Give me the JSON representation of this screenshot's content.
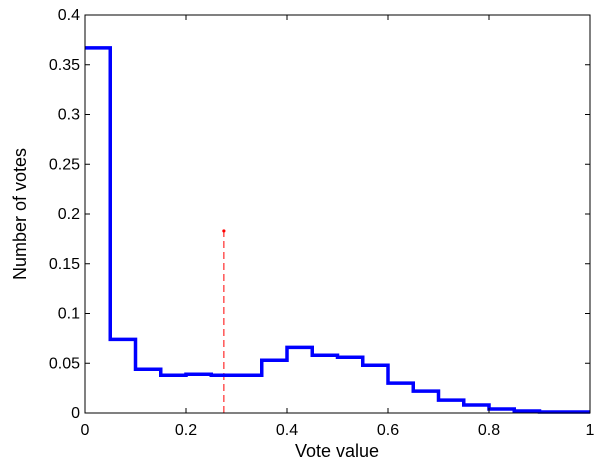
{
  "chart_data": {
    "type": "line",
    "title": "",
    "xlabel": "Vote value",
    "ylabel": "Number of votes",
    "xlim": [
      0,
      1
    ],
    "ylim": [
      0,
      0.4
    ],
    "x_ticks": [
      "0",
      "0.2",
      "0.4",
      "0.6",
      "0.8",
      "1"
    ],
    "y_ticks": [
      "0",
      "0.05",
      "0.1",
      "0.15",
      "0.2",
      "0.25",
      "0.3",
      "0.35",
      "0.4"
    ],
    "grid": false,
    "series": [
      {
        "kind": "stairs",
        "color": "#0000ff",
        "bin_edges": [
          0,
          0.05,
          0.1,
          0.15,
          0.2,
          0.25,
          0.3,
          0.35,
          0.4,
          0.45,
          0.5,
          0.55,
          0.6,
          0.65,
          0.7,
          0.75,
          0.8,
          0.85,
          0.9,
          0.95,
          1.0
        ],
        "values": [
          0.367,
          0.074,
          0.044,
          0.038,
          0.039,
          0.038,
          0.038,
          0.053,
          0.066,
          0.058,
          0.056,
          0.048,
          0.03,
          0.022,
          0.013,
          0.008,
          0.004,
          0.002,
          0.001,
          0.001
        ]
      }
    ],
    "annotations": [
      {
        "kind": "dashed-vertical-line",
        "color": "#ff0000",
        "x": 0.275,
        "y_from": 0,
        "y_to": 0.183
      }
    ]
  }
}
